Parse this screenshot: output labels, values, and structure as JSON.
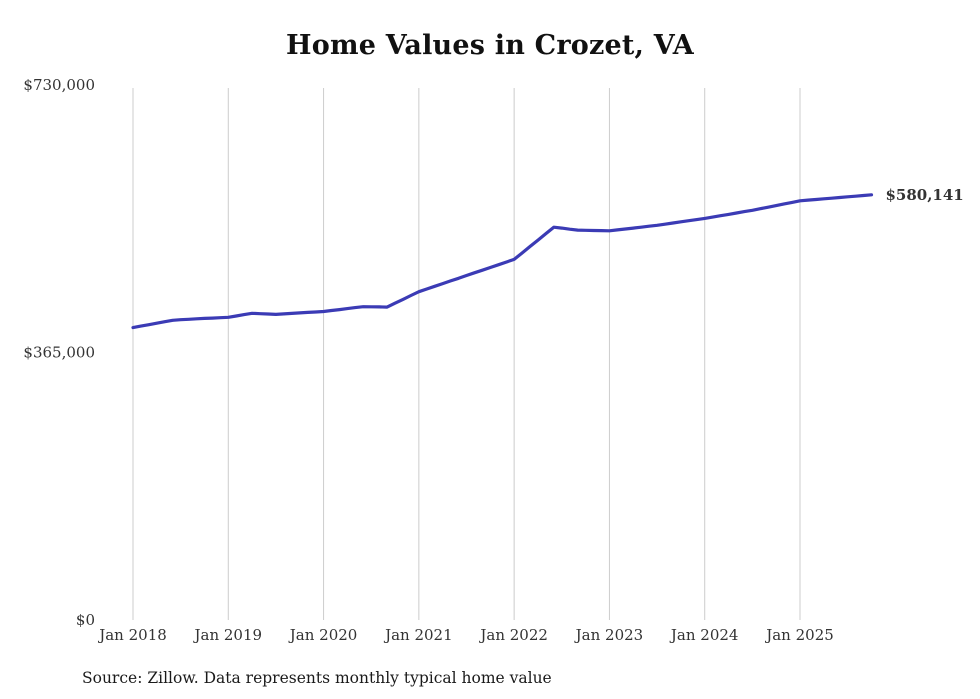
{
  "source_note": "Source: Zillow. Data represents monthly typical home value",
  "end_label": "$580,141",
  "colors": {
    "line": "#3b3bb5",
    "grid": "#cccccc",
    "axis_text": "#333333",
    "title": "#111111"
  },
  "chart_data": {
    "type": "line",
    "title": "Home Values in Crozet, VA",
    "xlabel": "",
    "ylabel": "",
    "ylim": [
      0,
      730000
    ],
    "grid": "vertical",
    "legend": false,
    "final_value": 580141,
    "yticks": [
      {
        "value": 0,
        "label": "$0"
      },
      {
        "value": 365000,
        "label": "$365,000"
      },
      {
        "value": 730000,
        "label": "$730,000"
      }
    ],
    "xticks": [
      "Jan 2018",
      "Jan 2019",
      "Jan 2020",
      "Jan 2021",
      "Jan 2022",
      "Jan 2023",
      "Jan 2024",
      "Jan 2025"
    ],
    "x": [
      "2018-01",
      "2018-02",
      "2018-03",
      "2018-04",
      "2018-05",
      "2018-06",
      "2018-07",
      "2018-08",
      "2018-09",
      "2018-10",
      "2018-11",
      "2018-12",
      "2019-01",
      "2019-02",
      "2019-03",
      "2019-04",
      "2019-05",
      "2019-06",
      "2019-07",
      "2019-08",
      "2019-09",
      "2019-10",
      "2019-11",
      "2019-12",
      "2020-01",
      "2020-02",
      "2020-03",
      "2020-04",
      "2020-05",
      "2020-06",
      "2020-07",
      "2020-08",
      "2020-09",
      "2020-10",
      "2020-11",
      "2020-12",
      "2021-01",
      "2021-02",
      "2021-03",
      "2021-04",
      "2021-05",
      "2021-06",
      "2021-07",
      "2021-08",
      "2021-09",
      "2021-10",
      "2021-11",
      "2021-12",
      "2022-01",
      "2022-02",
      "2022-03",
      "2022-04",
      "2022-05",
      "2022-06",
      "2022-07",
      "2022-08",
      "2022-09",
      "2022-10",
      "2022-11",
      "2022-12",
      "2023-01",
      "2023-02",
      "2023-03",
      "2023-04",
      "2023-05",
      "2023-06",
      "2023-07",
      "2023-08",
      "2023-09",
      "2023-10",
      "2023-11",
      "2023-12",
      "2024-01",
      "2024-02",
      "2024-03",
      "2024-04",
      "2024-05",
      "2024-06",
      "2024-07",
      "2024-08",
      "2024-09",
      "2024-10",
      "2024-11",
      "2024-12",
      "2025-01",
      "2025-02",
      "2025-03",
      "2025-04",
      "2025-05",
      "2025-06",
      "2025-07",
      "2025-08",
      "2025-09",
      "2025-10"
    ],
    "values": [
      399000,
      401000,
      403000,
      405000,
      407000,
      409000,
      409700,
      410300,
      411000,
      411500,
      412000,
      412500,
      413000,
      414800,
      416700,
      418500,
      418000,
      417500,
      417000,
      417700,
      418300,
      419000,
      419700,
      420300,
      421000,
      422300,
      423600,
      424900,
      426200,
      427500,
      427300,
      427200,
      427000,
      432300,
      437500,
      442800,
      448000,
      451700,
      455300,
      459000,
      462700,
      466300,
      470000,
      473700,
      477300,
      481000,
      484700,
      488300,
      492000,
      500800,
      509600,
      518400,
      527200,
      536000,
      534700,
      533300,
      532000,
      531800,
      531500,
      531300,
      531000,
      532300,
      533500,
      534800,
      536000,
      537300,
      538500,
      540100,
      541700,
      543300,
      544800,
      546400,
      548000,
      549800,
      551700,
      553500,
      555300,
      557200,
      559000,
      561200,
      563300,
      565500,
      567700,
      569800,
      572000,
      572900,
      573800,
      574700,
      575600,
      576500,
      577400,
      578300,
      579200,
      580141
    ]
  }
}
